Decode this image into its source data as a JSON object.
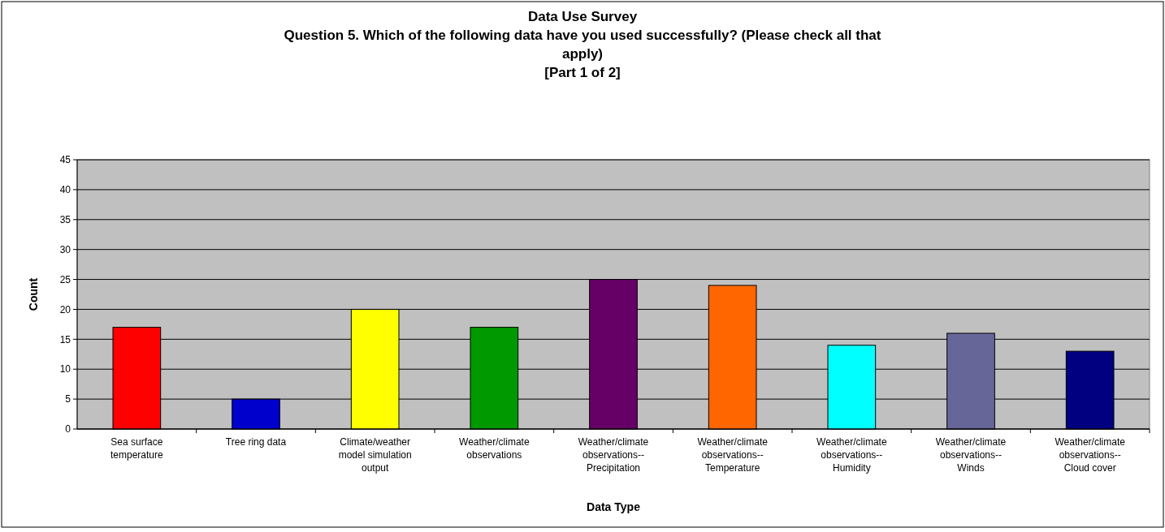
{
  "chart_data": {
    "type": "bar",
    "title": "Data Use Survey",
    "subtitle": "Question 5.  Which of the following data have you used successfully? (Please check all that apply)\n[Part 1 of 2]",
    "xlabel": "Data Type",
    "ylabel": "Count",
    "categories": [
      "Sea surface temperature",
      "Tree ring data",
      "Climate/weather model simulation output",
      "Weather/climate observations",
      "Weather/climate observations--Precipitation",
      "Weather/climate observations--Temperature",
      "Weather/climate observations--Humidity",
      "Weather/climate observations--Winds",
      "Weather/climate observations--Cloud cover"
    ],
    "values": [
      17,
      5,
      20,
      17,
      25,
      24,
      14,
      16,
      13
    ],
    "colors": [
      "#ff0000",
      "#0000cc",
      "#ffff00",
      "#009900",
      "#660066",
      "#ff6600",
      "#00ffff",
      "#666699",
      "#000080"
    ],
    "ylim": [
      0,
      45
    ],
    "yticks": [
      0,
      5,
      10,
      15,
      20,
      25,
      30,
      35,
      40,
      45
    ],
    "grid": "y"
  }
}
